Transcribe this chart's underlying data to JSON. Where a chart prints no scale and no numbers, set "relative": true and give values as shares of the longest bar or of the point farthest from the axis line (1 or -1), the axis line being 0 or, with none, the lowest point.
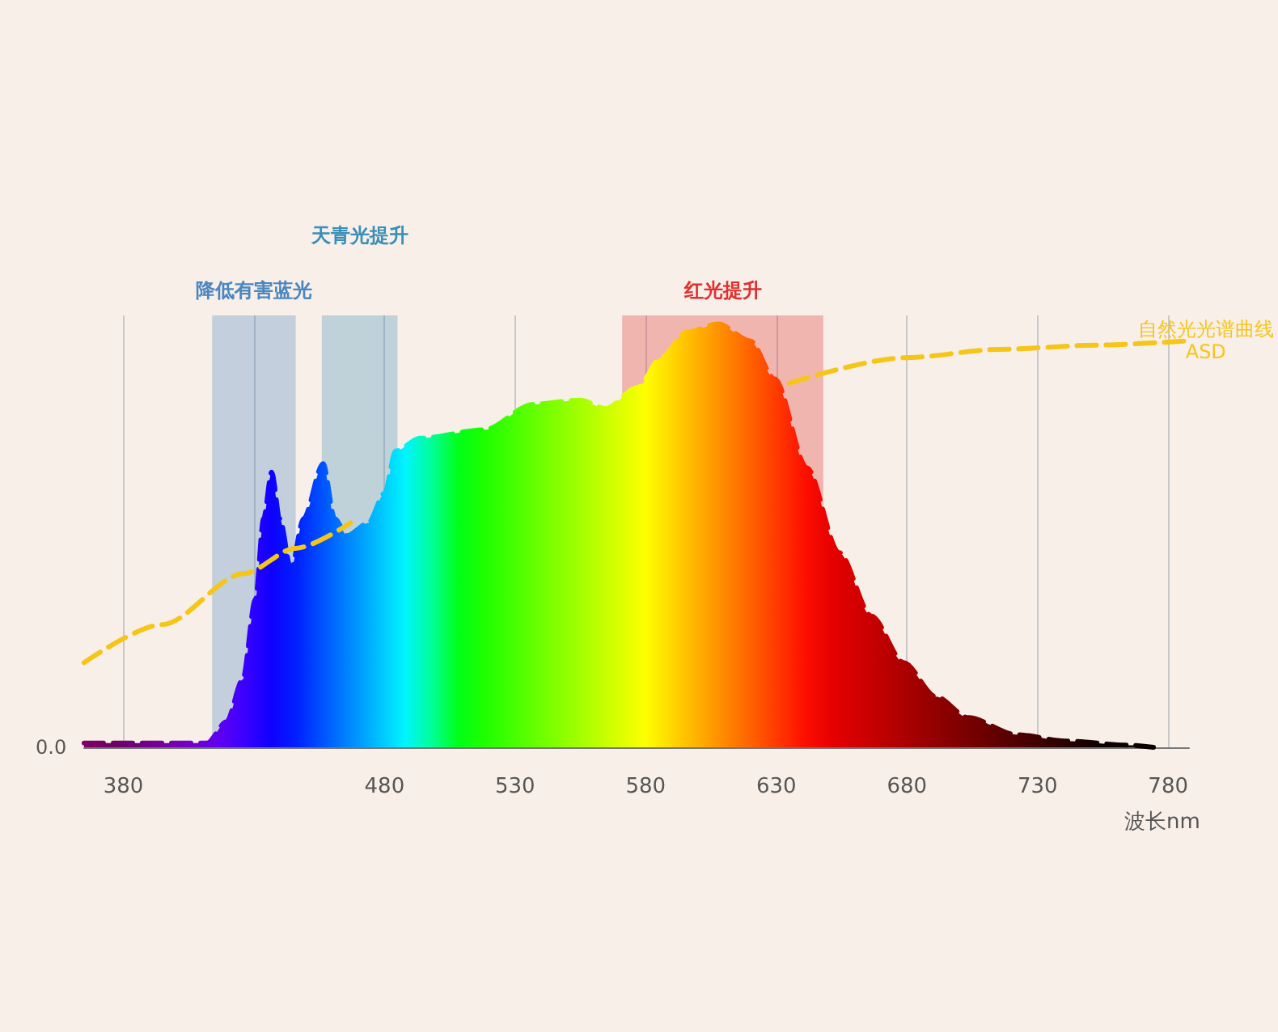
{
  "chart_data": {
    "type": "area",
    "relative": true,
    "xlabel": "波长nm",
    "xlim": [
      365,
      788
    ],
    "xticks": [
      380,
      {
        "value": 430,
        "label": null
      },
      480,
      530,
      580,
      630,
      680,
      730,
      780
    ],
    "grid": "x",
    "legend": false,
    "marker": "none",
    "line_style": "dashed",
    "series": [
      {
        "x": [
          365,
          412,
          419.5,
          425.7,
          430.6,
          433.7,
          436.8,
          439.9,
          444.2,
          449,
          456.5,
          460.9,
          465.8,
          473.8,
          480,
          484.3,
          493.6,
          518.3,
          536.8,
          555,
          564.6,
          576.9,
          586,
          595.4,
          607.8,
          620,
          629.4,
          641.7,
          654,
          666.4,
          678.8,
          691,
          703.5,
          722,
          740.5,
          765,
          774.4
        ],
        "values": [
          0.01,
          0.01,
          0.06,
          0.16,
          0.35,
          0.54,
          0.65,
          0.54,
          0.42,
          0.54,
          0.67,
          0.54,
          0.5,
          0.53,
          0.6,
          0.7,
          0.73,
          0.75,
          0.81,
          0.82,
          0.8,
          0.85,
          0.92,
          0.98,
          1,
          0.96,
          0.87,
          0.66,
          0.46,
          0.31,
          0.2,
          0.12,
          0.07,
          0.03,
          0.015,
          0.005,
          0
        ]
      },
      {
        "type": "line",
        "name": "自然光光谱曲线 ASD",
        "color": "#f5c518",
        "x": [
          365,
          395,
          426,
          446,
          467,
          550,
          635,
          679,
          716,
          753,
          787
        ],
        "values": [
          0.2,
          0.29,
          0.41,
          0.47,
          0.53,
          null,
          0.86,
          0.92,
          0.94,
          0.95,
          0.96
        ]
      }
    ],
    "bands": [
      {
        "axis": "x",
        "from": 414,
        "to": 446,
        "label": "降低有害蓝光",
        "color": "#4a86c0"
      },
      {
        "axis": "x",
        "from": 456,
        "to": 485,
        "label": "天青光提升",
        "color": "#3a8fb7"
      },
      {
        "axis": "x",
        "from": 571,
        "to": 648,
        "label": "红光提升",
        "color": "#e03030"
      }
    ],
    "annotations": [
      "0.0"
    ]
  }
}
